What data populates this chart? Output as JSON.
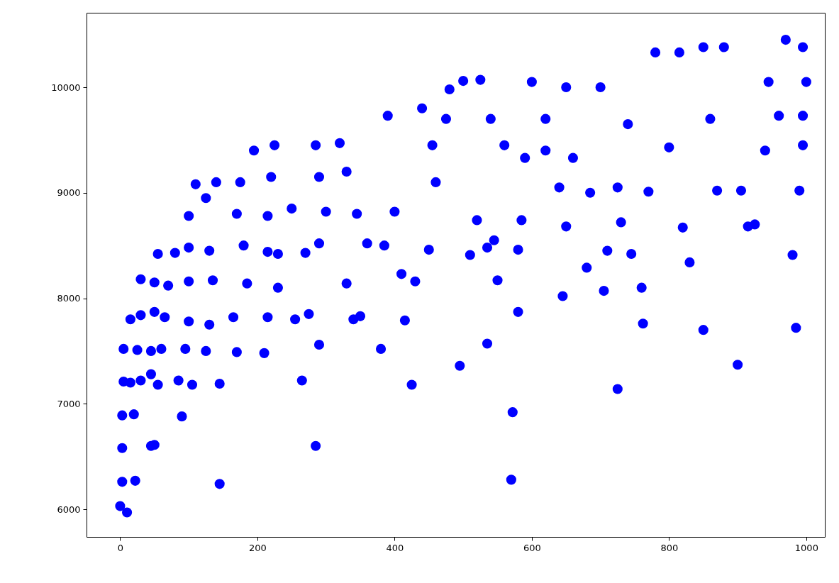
{
  "chart_data": {
    "type": "scatter",
    "marker": "circle",
    "grid": false,
    "xlim": [
      -49,
      1027
    ],
    "ylim": [
      5738,
      10706
    ],
    "xticks": [
      0,
      200,
      400,
      600,
      800,
      1000
    ],
    "yticks": [
      6000,
      7000,
      8000,
      9000,
      10000
    ],
    "series": [
      {
        "color": "#0000ff",
        "x": [
          0,
          10,
          3,
          22,
          3,
          3,
          20,
          45,
          50,
          5,
          15,
          30,
          45,
          55,
          5,
          25,
          45,
          60,
          15,
          30,
          50,
          65,
          30,
          50,
          70,
          55,
          80,
          90,
          85,
          95,
          100,
          100,
          100,
          100,
          110,
          105,
          125,
          130,
          135,
          130,
          125,
          140,
          145,
          145,
          165,
          170,
          185,
          180,
          170,
          175,
          195,
          210,
          215,
          215,
          215,
          220,
          225,
          230,
          230,
          250,
          255,
          265,
          275,
          270,
          285,
          290,
          290,
          300,
          290,
          285,
          320,
          330,
          340,
          345,
          330,
          350,
          360,
          380,
          385,
          390,
          400,
          410,
          415,
          425,
          430,
          450,
          440,
          460,
          455,
          475,
          480,
          495,
          500,
          510,
          520,
          525,
          535,
          535,
          545,
          550,
          560,
          570,
          572,
          580,
          580,
          585,
          590,
          600,
          620,
          640,
          645,
          650,
          660,
          680,
          685,
          700,
          705,
          710,
          725,
          725,
          730,
          745,
          760,
          762,
          770,
          780,
          800,
          815,
          820,
          830,
          850,
          850,
          870,
          880,
          900,
          905,
          915,
          925,
          940,
          945,
          970,
          980,
          985,
          990,
          995,
          995,
          995,
          1000,
          960,
          860,
          740,
          650,
          620,
          540
        ],
        "values": [
          6030,
          5970,
          6260,
          6270,
          6580,
          6890,
          6900,
          6600,
          6610,
          7210,
          7200,
          7220,
          7280,
          7180,
          7520,
          7510,
          7500,
          7520,
          7800,
          7840,
          7870,
          7820,
          8180,
          8150,
          8120,
          8420,
          8430,
          6880,
          7220,
          7520,
          7780,
          8160,
          8480,
          8780,
          9080,
          7180,
          7500,
          7750,
          8170,
          8450,
          8950,
          9100,
          6240,
          7190,
          7820,
          7490,
          8140,
          8500,
          8800,
          9100,
          9400,
          7480,
          7820,
          8440,
          8780,
          9150,
          9450,
          8100,
          8420,
          8850,
          7800,
          7220,
          7850,
          8430,
          6600,
          7560,
          8520,
          8820,
          9150,
          9450,
          9470,
          8140,
          7800,
          8800,
          9200,
          7830,
          8520,
          7520,
          8500,
          9730,
          8820,
          8230,
          7790,
          7180,
          8160,
          8460,
          9800,
          9100,
          9450,
          9700,
          9980,
          7360,
          10060,
          8410,
          8740,
          10070,
          7570,
          8480,
          8550,
          8170,
          9450,
          6280,
          6920,
          7870,
          8460,
          8740,
          9330,
          10050,
          9400,
          9050,
          8020,
          8680,
          9330,
          8290,
          9000,
          10000,
          8070,
          8450,
          7140,
          9050,
          8720,
          8420,
          8100,
          7760,
          9010,
          10330,
          9430,
          10330,
          8670,
          8340,
          7700,
          10380,
          9020,
          10380,
          7370,
          9020,
          8680,
          8700,
          9400,
          10050,
          10450,
          8410,
          7720,
          9020,
          9450,
          10380,
          9730,
          10050,
          9730,
          9700,
          9650,
          10000,
          9700,
          9700
        ]
      }
    ]
  }
}
